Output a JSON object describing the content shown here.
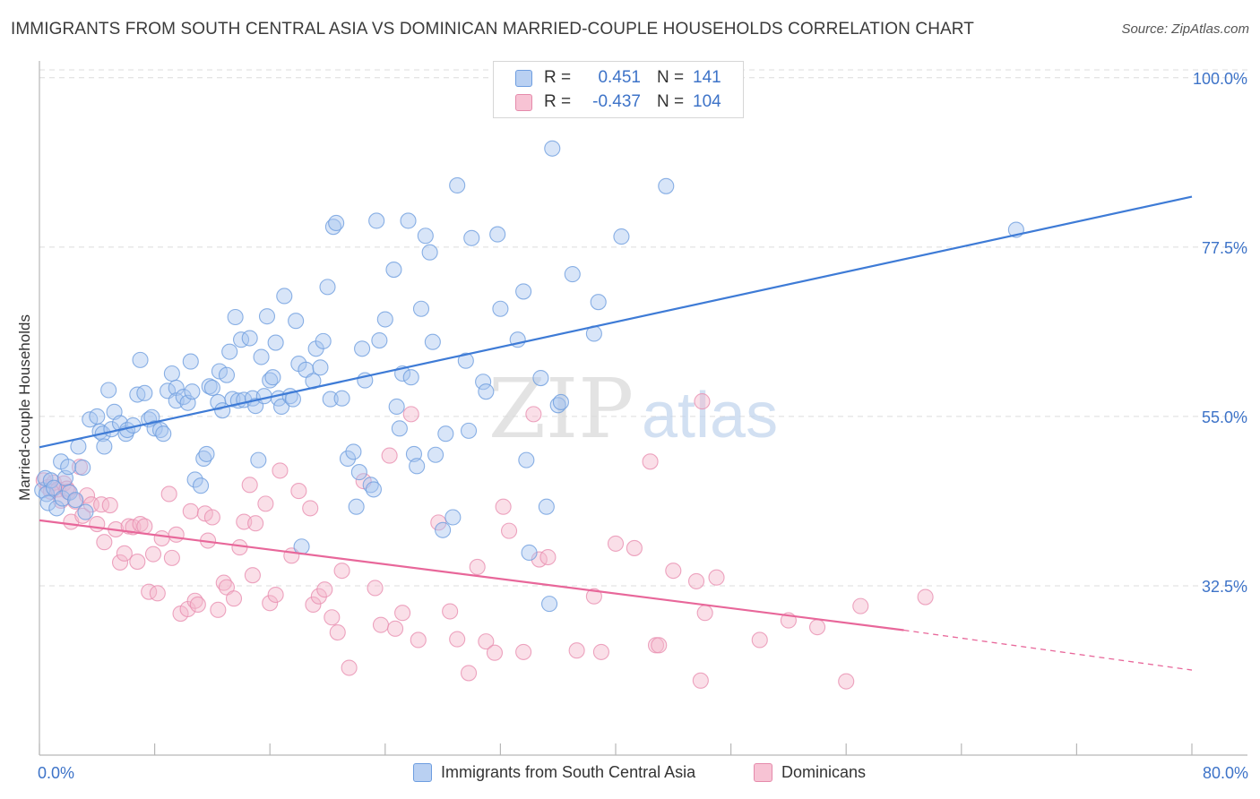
{
  "title": "IMMIGRANTS FROM SOUTH CENTRAL ASIA VS DOMINICAN MARRIED-COUPLE HOUSEHOLDS CORRELATION CHART",
  "source": "Source: ZipAtlas.com",
  "watermark_zip": "ZIP",
  "watermark_atlas": "atlas",
  "colors": {
    "blue": "#3e7bd6",
    "pink": "#e8679a",
    "blue_fill": "#a8c6ef",
    "pink_fill": "#f5b7cc",
    "tick_text": "#3d73c8"
  },
  "legend": {
    "rows": [
      {
        "r_label": "R =",
        "r_value": "0.451",
        "n_label": "N =",
        "n_value": "141"
      },
      {
        "r_label": "R =",
        "r_value": "-0.437",
        "n_label": "N =",
        "n_value": "104"
      }
    ]
  },
  "bottom_legend": {
    "series1": "Immigrants from South Central Asia",
    "series2": "Dominicans"
  },
  "chart_data": {
    "type": "scatter",
    "title": "IMMIGRANTS FROM SOUTH CENTRAL ASIA VS DOMINICAN MARRIED-COUPLE HOUSEHOLDS CORRELATION CHART",
    "xlabel": "",
    "ylabel": "Married-couple Households",
    "xlim": [
      0,
      80
    ],
    "ylim": [
      10,
      102
    ],
    "x_tick_labels": [
      "0.0%",
      "80.0%"
    ],
    "y_ticks": [
      32.5,
      55.0,
      77.5,
      100.0
    ],
    "y_tick_labels": [
      "32.5%",
      "55.0%",
      "77.5%",
      "100.0%"
    ],
    "grid": true,
    "series": [
      {
        "name": "Immigrants from South Central Asia",
        "color": "#3e7bd6",
        "trend": {
          "x0": 0,
          "y0": 50.9,
          "x1": 80,
          "y1": 84.2
        },
        "points": [
          [
            0.2,
            45.2
          ],
          [
            0.4,
            46.8
          ],
          [
            0.5,
            44.7
          ],
          [
            0.6,
            43.5
          ],
          [
            0.8,
            46.5
          ],
          [
            1.0,
            45.5
          ],
          [
            1.2,
            42.8
          ],
          [
            1.5,
            49.0
          ],
          [
            1.6,
            44.1
          ],
          [
            1.8,
            46.8
          ],
          [
            2.0,
            48.3
          ],
          [
            2.1,
            44.9
          ],
          [
            2.5,
            43.9
          ],
          [
            2.7,
            51.0
          ],
          [
            3.0,
            48.2
          ],
          [
            3.2,
            42.3
          ],
          [
            3.5,
            54.6
          ],
          [
            4.0,
            55.0
          ],
          [
            4.2,
            53.0
          ],
          [
            4.4,
            52.7
          ],
          [
            4.5,
            51.0
          ],
          [
            4.8,
            58.5
          ],
          [
            5.0,
            53.3
          ],
          [
            5.2,
            55.6
          ],
          [
            5.6,
            54.1
          ],
          [
            6.0,
            52.7
          ],
          [
            6.1,
            53.2
          ],
          [
            6.5,
            53.8
          ],
          [
            6.8,
            57.9
          ],
          [
            7.0,
            62.5
          ],
          [
            7.3,
            58.1
          ],
          [
            7.6,
            54.6
          ],
          [
            7.8,
            54.9
          ],
          [
            8.0,
            53.4
          ],
          [
            8.4,
            53.2
          ],
          [
            8.6,
            52.7
          ],
          [
            8.9,
            58.4
          ],
          [
            9.2,
            60.7
          ],
          [
            9.5,
            58.8
          ],
          [
            9.5,
            57.1
          ],
          [
            10.0,
            57.6
          ],
          [
            10.3,
            56.8
          ],
          [
            10.5,
            62.3
          ],
          [
            10.6,
            58.3
          ],
          [
            10.8,
            46.6
          ],
          [
            11.2,
            45.8
          ],
          [
            11.4,
            49.4
          ],
          [
            11.6,
            50.0
          ],
          [
            11.8,
            59.0
          ],
          [
            12.0,
            58.8
          ],
          [
            12.4,
            56.9
          ],
          [
            12.5,
            61.0
          ],
          [
            12.7,
            55.8
          ],
          [
            13.0,
            60.5
          ],
          [
            13.2,
            63.6
          ],
          [
            13.4,
            57.3
          ],
          [
            13.6,
            68.2
          ],
          [
            13.8,
            57.1
          ],
          [
            14.0,
            65.2
          ],
          [
            14.2,
            57.2
          ],
          [
            14.6,
            65.4
          ],
          [
            14.8,
            57.4
          ],
          [
            15.0,
            56.4
          ],
          [
            15.2,
            49.2
          ],
          [
            15.4,
            62.9
          ],
          [
            15.6,
            57.7
          ],
          [
            15.8,
            68.3
          ],
          [
            16.0,
            59.8
          ],
          [
            16.2,
            60.2
          ],
          [
            16.4,
            64.8
          ],
          [
            16.6,
            57.4
          ],
          [
            16.8,
            56.3
          ],
          [
            17.0,
            71.0
          ],
          [
            17.4,
            57.7
          ],
          [
            17.6,
            57.3
          ],
          [
            17.8,
            67.7
          ],
          [
            18.0,
            62.0
          ],
          [
            18.2,
            37.7
          ],
          [
            18.5,
            61.2
          ],
          [
            19.0,
            59.7
          ],
          [
            19.2,
            64.0
          ],
          [
            19.5,
            61.5
          ],
          [
            19.7,
            65.0
          ],
          [
            20.0,
            72.2
          ],
          [
            20.2,
            57.3
          ],
          [
            20.4,
            80.2
          ],
          [
            20.6,
            80.7
          ],
          [
            21.0,
            57.4
          ],
          [
            21.4,
            49.4
          ],
          [
            21.8,
            50.3
          ],
          [
            22.0,
            43.0
          ],
          [
            22.2,
            47.6
          ],
          [
            22.4,
            64.0
          ],
          [
            22.6,
            59.8
          ],
          [
            23.0,
            45.9
          ],
          [
            23.2,
            45.3
          ],
          [
            23.4,
            81.0
          ],
          [
            23.6,
            65.1
          ],
          [
            24.0,
            67.9
          ],
          [
            24.6,
            74.5
          ],
          [
            24.8,
            56.3
          ],
          [
            25.0,
            53.4
          ],
          [
            25.2,
            60.7
          ],
          [
            25.6,
            81.0
          ],
          [
            25.8,
            60.2
          ],
          [
            26.0,
            50.0
          ],
          [
            26.2,
            48.4
          ],
          [
            26.5,
            69.3
          ],
          [
            26.8,
            79.0
          ],
          [
            27.1,
            76.8
          ],
          [
            27.3,
            64.9
          ],
          [
            27.5,
            49.9
          ],
          [
            28.0,
            39.9
          ],
          [
            28.2,
            52.7
          ],
          [
            28.7,
            41.6
          ],
          [
            29.0,
            85.7
          ],
          [
            29.6,
            62.4
          ],
          [
            29.8,
            53.1
          ],
          [
            30.0,
            78.7
          ],
          [
            30.8,
            59.6
          ],
          [
            31.0,
            58.3
          ],
          [
            31.8,
            79.2
          ],
          [
            32.0,
            69.3
          ],
          [
            33.2,
            65.2
          ],
          [
            33.6,
            71.6
          ],
          [
            33.8,
            49.2
          ],
          [
            34.0,
            36.9
          ],
          [
            34.8,
            60.1
          ],
          [
            35.2,
            43.0
          ],
          [
            35.4,
            30.1
          ],
          [
            35.6,
            90.6
          ],
          [
            36.0,
            56.5
          ],
          [
            36.2,
            56.9
          ],
          [
            37.0,
            73.9
          ],
          [
            38.5,
            66.0
          ],
          [
            38.8,
            70.2
          ],
          [
            40.4,
            78.9
          ],
          [
            43.5,
            85.6
          ],
          [
            67.8,
            79.8
          ]
        ]
      },
      {
        "name": "Dominicans",
        "color": "#e8679a",
        "trend": {
          "x0": 0,
          "y0": 41.2,
          "x1": 60,
          "y1": 26.6,
          "dash_to": {
            "x": 80,
            "y": 21.3
          }
        },
        "points": [
          [
            0.3,
            46.5
          ],
          [
            0.6,
            45.6
          ],
          [
            0.8,
            45.0
          ],
          [
            1.0,
            46.2
          ],
          [
            1.3,
            45.3
          ],
          [
            1.5,
            43.8
          ],
          [
            1.7,
            46.1
          ],
          [
            1.9,
            45.4
          ],
          [
            2.0,
            45.0
          ],
          [
            2.2,
            41.0
          ],
          [
            2.5,
            43.7
          ],
          [
            2.8,
            48.3
          ],
          [
            3.0,
            41.8
          ],
          [
            3.3,
            44.5
          ],
          [
            3.6,
            43.3
          ],
          [
            4.0,
            40.7
          ],
          [
            4.3,
            43.3
          ],
          [
            4.5,
            38.3
          ],
          [
            4.9,
            43.2
          ],
          [
            5.3,
            40.0
          ],
          [
            5.6,
            35.6
          ],
          [
            5.9,
            36.8
          ],
          [
            6.2,
            40.4
          ],
          [
            6.5,
            40.3
          ],
          [
            6.8,
            35.7
          ],
          [
            7.0,
            40.7
          ],
          [
            7.3,
            40.4
          ],
          [
            7.6,
            31.7
          ],
          [
            7.9,
            36.7
          ],
          [
            8.2,
            31.5
          ],
          [
            8.5,
            38.8
          ],
          [
            9.0,
            44.7
          ],
          [
            9.2,
            36.2
          ],
          [
            9.5,
            39.3
          ],
          [
            9.8,
            28.8
          ],
          [
            10.3,
            29.4
          ],
          [
            10.5,
            42.4
          ],
          [
            10.8,
            30.5
          ],
          [
            11.0,
            30.0
          ],
          [
            11.5,
            42.1
          ],
          [
            11.7,
            38.5
          ],
          [
            12.0,
            41.6
          ],
          [
            12.4,
            29.3
          ],
          [
            12.8,
            32.9
          ],
          [
            13.0,
            32.3
          ],
          [
            13.5,
            30.8
          ],
          [
            13.9,
            37.6
          ],
          [
            14.2,
            41.0
          ],
          [
            14.6,
            45.9
          ],
          [
            14.8,
            33.9
          ],
          [
            15.0,
            40.8
          ],
          [
            15.7,
            43.4
          ],
          [
            16.0,
            30.2
          ],
          [
            16.4,
            31.3
          ],
          [
            16.7,
            47.8
          ],
          [
            17.5,
            36.5
          ],
          [
            18.0,
            45.1
          ],
          [
            18.8,
            42.8
          ],
          [
            19.0,
            30.0
          ],
          [
            19.4,
            31.1
          ],
          [
            19.8,
            32.0
          ],
          [
            20.3,
            28.3
          ],
          [
            20.7,
            26.3
          ],
          [
            21.0,
            34.5
          ],
          [
            21.5,
            21.6
          ],
          [
            22.5,
            46.4
          ],
          [
            23.3,
            32.2
          ],
          [
            23.7,
            27.3
          ],
          [
            24.3,
            49.8
          ],
          [
            24.7,
            26.8
          ],
          [
            25.2,
            28.9
          ],
          [
            25.8,
            55.3
          ],
          [
            26.3,
            25.3
          ],
          [
            27.7,
            40.9
          ],
          [
            28.5,
            29.1
          ],
          [
            29.0,
            25.4
          ],
          [
            29.8,
            20.9
          ],
          [
            30.4,
            35.0
          ],
          [
            31.0,
            25.1
          ],
          [
            31.6,
            23.6
          ],
          [
            32.2,
            43.0
          ],
          [
            32.6,
            39.8
          ],
          [
            33.6,
            23.7
          ],
          [
            34.3,
            55.3
          ],
          [
            34.7,
            36.0
          ],
          [
            35.3,
            36.3
          ],
          [
            37.3,
            23.9
          ],
          [
            38.5,
            31.1
          ],
          [
            39.0,
            23.7
          ],
          [
            40.0,
            38.1
          ],
          [
            41.3,
            37.5
          ],
          [
            42.4,
            49.0
          ],
          [
            42.8,
            24.6
          ],
          [
            43.0,
            24.6
          ],
          [
            44.0,
            34.5
          ],
          [
            45.6,
            33.1
          ],
          [
            45.9,
            19.9
          ],
          [
            46.0,
            57.0
          ],
          [
            46.2,
            28.9
          ],
          [
            47.0,
            33.6
          ],
          [
            50.0,
            25.3
          ],
          [
            52.0,
            27.9
          ],
          [
            54.0,
            27.0
          ],
          [
            56.0,
            19.8
          ],
          [
            57.0,
            29.8
          ],
          [
            61.5,
            31.0
          ]
        ]
      }
    ]
  }
}
